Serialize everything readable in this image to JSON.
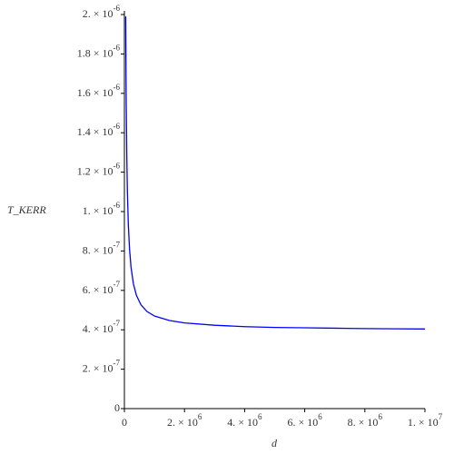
{
  "chart_data": {
    "type": "line",
    "x_label": "d",
    "y_label": "T_KERR",
    "xlim": [
      0,
      10000000
    ],
    "ylim": [
      0,
      2e-06
    ],
    "xticks": [
      0,
      {
        "value": 2000000,
        "label": "2. × 106"
      },
      {
        "value": 4000000,
        "label": "4. × 106"
      },
      {
        "value": 6000000,
        "label": "6. × 106"
      },
      {
        "value": 8000000,
        "label": "8. × 106"
      },
      {
        "value": 10000000,
        "label": "1. × 107"
      }
    ],
    "yticks": [
      0,
      {
        "value": 2e-07,
        "label": "2. × 10-7"
      },
      {
        "value": 4e-07,
        "label": "4. × 10-7"
      },
      {
        "value": 6e-07,
        "label": "6. × 10-7"
      },
      {
        "value": 8e-07,
        "label": "8. × 10-7"
      },
      {
        "value": 1e-06,
        "label": "1. × 10-6"
      },
      {
        "value": 1.2e-06,
        "label": "1.2 × 10-6"
      },
      {
        "value": 1.4e-06,
        "label": "1.4 × 10-6"
      },
      {
        "value": 1.6e-06,
        "label": "1.6 × 10-6"
      },
      {
        "value": 1.8e-06,
        "label": "1.8 × 10-6"
      },
      {
        "value": 2e-06,
        "label": "2. × 10-6"
      }
    ],
    "x": [
      44000,
      50000,
      60000,
      80000,
      100000,
      130000,
      170000,
      220000,
      300000,
      400000,
      550000,
      750000,
      1000000,
      1500000,
      2000000,
      3000000,
      4000000,
      5000000,
      6000000,
      7000000,
      8000000,
      9000000,
      10000000
    ],
    "series": [
      {
        "color": "#0000ff",
        "values": [
          1.99e-06,
          1.8e-06,
          1.567e-06,
          1.275e-06,
          1.1e-06,
          9.38e-07,
          8.12e-07,
          7.18e-07,
          6.33e-07,
          5.75e-07,
          5.27e-07,
          4.93e-07,
          4.7e-07,
          4.47e-07,
          4.35e-07,
          4.23e-07,
          4.16e-07,
          4.12e-07,
          4.1e-07,
          4.08e-07,
          4.06e-07,
          4.05e-07,
          4.04e-07
        ]
      }
    ]
  }
}
